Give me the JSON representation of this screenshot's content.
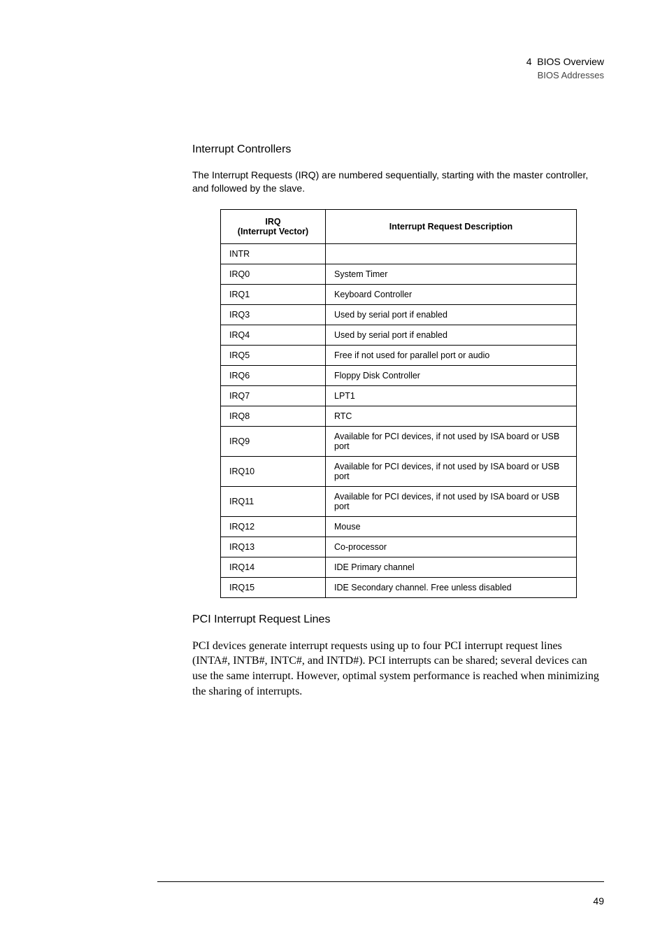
{
  "header": {
    "chapter_number": "4",
    "chapter_title": "BIOS Overview",
    "section_title": "BIOS Addresses"
  },
  "section1": {
    "heading": "Interrupt Controllers",
    "intro": "The Interrupt Requests (IRQ) are numbered sequentially, starting with the master controller, and followed by the slave."
  },
  "table": {
    "col1_line1": "IRQ",
    "col1_line2": "(Interrupt Vector)",
    "col2": "Interrupt Request Description",
    "rows": [
      {
        "irq": "INTR",
        "desc": ""
      },
      {
        "irq": "IRQ0",
        "desc": "System Timer"
      },
      {
        "irq": "IRQ1",
        "desc": "Keyboard Controller"
      },
      {
        "irq": "IRQ3",
        "desc": "Used by serial port if enabled"
      },
      {
        "irq": "IRQ4",
        "desc": "Used by serial port if enabled"
      },
      {
        "irq": "IRQ5",
        "desc": "Free if not used for parallel port or audio"
      },
      {
        "irq": "IRQ6",
        "desc": "Floppy Disk Controller"
      },
      {
        "irq": "IRQ7",
        "desc": "LPT1"
      },
      {
        "irq": "IRQ8",
        "desc": "RTC"
      },
      {
        "irq": "IRQ9",
        "desc": "Available for PCI devices, if not used by ISA board or USB port"
      },
      {
        "irq": "IRQ10",
        "desc": "Available for PCI devices, if not used by ISA board or USB port"
      },
      {
        "irq": "IRQ11",
        "desc": "Available for PCI devices, if not used by ISA board or USB port"
      },
      {
        "irq": "IRQ12",
        "desc": "Mouse"
      },
      {
        "irq": "IRQ13",
        "desc": "Co-processor"
      },
      {
        "irq": "IRQ14",
        "desc": "IDE Primary channel"
      },
      {
        "irq": "IRQ15",
        "desc": "IDE Secondary channel. Free unless disabled"
      }
    ]
  },
  "section2": {
    "heading": "PCI Interrupt Request Lines",
    "body": "PCI devices generate interrupt requests using up to four PCI interrupt request lines (INTA#, INTB#, INTC#, and INTD#). PCI interrupts can be shared; several devices can use the same interrupt. However, optimal system performance is reached when minimizing the sharing of interrupts."
  },
  "page_number": "49"
}
